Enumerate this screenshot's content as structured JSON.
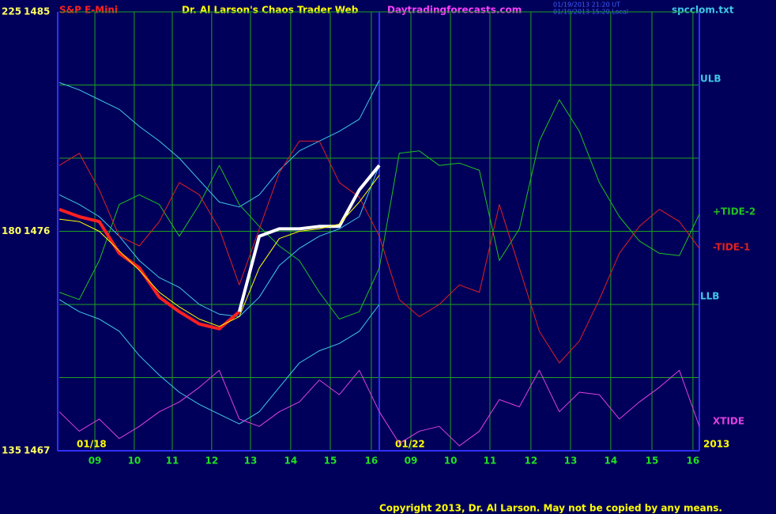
{
  "chart_data": {
    "type": "line",
    "instrument": "S&P E-Mini",
    "title": "Dr. Al Larson's Chaos Trader Web",
    "website": "Daytradingforecasts.com",
    "timestamps": [
      "01/19/2013 21:20 UT",
      "01/19/2013 15:20 Local"
    ],
    "file": "spcclom.txt",
    "copyright": "Copyright 2013, Dr. Al Larson. May not be copied by any means.",
    "date_labels": [
      "01/18",
      "01/22",
      "2013"
    ],
    "x": [
      0,
      1,
      2,
      3,
      4,
      5,
      6,
      7,
      8,
      9,
      10,
      11,
      12,
      13,
      14,
      15,
      16,
      17,
      18,
      19,
      20,
      21,
      22,
      23,
      24,
      25,
      26,
      27,
      28,
      29,
      30,
      31,
      32
    ],
    "xlim": [
      0,
      32
    ],
    "xticks": [
      {
        "value": 1.78,
        "label": "09"
      },
      {
        "value": 3.75,
        "label": "10"
      },
      {
        "value": 5.65,
        "label": "11"
      },
      {
        "value": 7.62,
        "label": "12"
      },
      {
        "value": 9.56,
        "label": "13"
      },
      {
        "value": 11.57,
        "label": "14"
      },
      {
        "value": 13.55,
        "label": "15"
      },
      {
        "value": 15.6,
        "label": "16"
      },
      {
        "value": 17.58,
        "label": "09"
      },
      {
        "value": 19.56,
        "label": "10"
      },
      {
        "value": 21.53,
        "label": "11"
      },
      {
        "value": 23.58,
        "label": "12"
      },
      {
        "value": 25.56,
        "label": "13"
      },
      {
        "value": 27.57,
        "label": "14"
      },
      {
        "value": 29.63,
        "label": "15"
      },
      {
        "value": 31.68,
        "label": "16"
      }
    ],
    "day_breaks": [
      16
    ],
    "ylim": [
      1467,
      1485
    ],
    "yticks": [
      1467,
      1476,
      1485
    ],
    "y2lim": [
      135,
      225
    ],
    "y2ticks": [
      135,
      180,
      225
    ],
    "ygrid": [
      1467,
      1470,
      1473,
      1476,
      1479,
      1482,
      1485
    ],
    "series": [
      {
        "name": "ULB",
        "color": "#40c8e8",
        "values": [
          1482.1,
          1481.8,
          1481.4,
          1481.0,
          1480.3,
          1479.7,
          1479.0,
          1478.1,
          1477.2,
          1477.0,
          1477.5,
          1478.5,
          1479.3,
          1479.7,
          1480.1,
          1480.6,
          1482.2,
          null,
          null,
          null,
          null,
          null,
          null,
          null,
          null,
          null,
          null,
          null,
          null,
          null,
          null,
          null,
          null
        ]
      },
      {
        "color": "#40c8e8",
        "values": [
          1477.5,
          1477.1,
          1476.6,
          1475.8,
          1474.8,
          1474.1,
          1473.7,
          1473.0,
          1472.6,
          1472.5,
          1473.3,
          1474.6,
          1475.3,
          1475.8,
          1476.1,
          1476.6,
          1478.7,
          null,
          null,
          null,
          null,
          null,
          null,
          null,
          null,
          null,
          null,
          null,
          null,
          null,
          null,
          null,
          null
        ]
      },
      {
        "name": "LLB",
        "color": "#40c8e8",
        "values": [
          1473.2,
          1472.7,
          1472.4,
          1471.9,
          1470.9,
          1470.1,
          1469.4,
          1468.9,
          1468.5,
          1468.1,
          1468.6,
          1469.6,
          1470.6,
          1471.1,
          1471.4,
          1471.9,
          1473.0,
          null,
          null,
          null,
          null,
          null,
          null,
          null,
          null,
          null,
          null,
          null,
          null,
          null,
          null,
          null,
          null
        ]
      },
      {
        "name": "+TIDE-2",
        "color": "#20c020",
        "values": [
          1473.5,
          1473.2,
          1474.8,
          1477.1,
          1477.5,
          1477.1,
          1475.8,
          1477.1,
          1478.7,
          1477.1,
          1476.2,
          1475.4,
          1474.8,
          1473.5,
          1472.4,
          1472.7,
          1474.5,
          1479.2,
          1479.3,
          1478.7,
          1478.8,
          1478.5,
          1474.8,
          1476.1,
          1479.7,
          1481.4,
          1480.1,
          1478.0,
          1476.6,
          1475.6,
          1475.1,
          1475.0,
          1476.7
        ]
      },
      {
        "name": "-TIDE-1",
        "color": "#e02020",
        "values": [
          1478.7,
          1479.2,
          1477.7,
          1475.8,
          1475.4,
          1476.4,
          1478.0,
          1477.5,
          1476.1,
          1473.8,
          1476.1,
          1478.4,
          1479.7,
          1479.7,
          1478.0,
          1477.4,
          1475.8,
          1473.2,
          1472.5,
          1473.0,
          1473.8,
          1473.5,
          1477.1,
          1474.5,
          1471.9,
          1470.6,
          1471.5,
          1473.2,
          1475.1,
          1476.2,
          1476.9,
          1476.4,
          1475.3
        ]
      },
      {
        "name": "XTIDE",
        "color": "#e040e0",
        "values": [
          1468.6,
          1467.8,
          1468.3,
          1467.5,
          1468.0,
          1468.6,
          1469.0,
          1469.6,
          1470.3,
          1468.3,
          1468.0,
          1468.6,
          1469.0,
          1469.9,
          1469.3,
          1470.3,
          1468.6,
          1467.3,
          1467.8,
          1468.0,
          1467.2,
          1467.8,
          1469.1,
          1468.8,
          1470.3,
          1468.6,
          1469.4,
          1469.3,
          1468.3,
          1469.0,
          1469.6,
          1470.3,
          1468.0
        ]
      },
      {
        "color": "#ff2020",
        "width": 4,
        "values": [
          1476.9,
          1476.6,
          1476.4,
          1475.1,
          1474.5,
          1473.3,
          1472.7,
          1472.2,
          1472.0,
          1472.7,
          null,
          null,
          null,
          null,
          null,
          null,
          null,
          null,
          null,
          null,
          null,
          null,
          null,
          null,
          null,
          null,
          null,
          null,
          null,
          null,
          null,
          null,
          null
        ]
      },
      {
        "color": "#ffffff",
        "width": 4,
        "values": [
          null,
          null,
          null,
          null,
          null,
          null,
          null,
          null,
          null,
          1472.7,
          1475.8,
          1476.1,
          1476.1,
          1476.2,
          1476.2,
          1477.7,
          1478.7,
          null,
          null,
          null,
          null,
          null,
          null,
          null,
          null,
          null,
          null,
          null,
          null,
          null,
          null,
          null,
          null
        ]
      },
      {
        "color": "#ffff00",
        "values": [
          1476.5,
          1476.4,
          1476.0,
          1475.2,
          1474.4,
          1473.5,
          1472.9,
          1472.4,
          1472.1,
          1472.5,
          1474.5,
          1475.7,
          1476.0,
          1476.1,
          1476.3,
          1477.2,
          1478.3,
          null,
          null,
          null,
          null,
          null,
          null,
          null,
          null,
          null,
          null,
          null,
          null,
          null,
          null,
          null,
          null
        ]
      }
    ]
  }
}
